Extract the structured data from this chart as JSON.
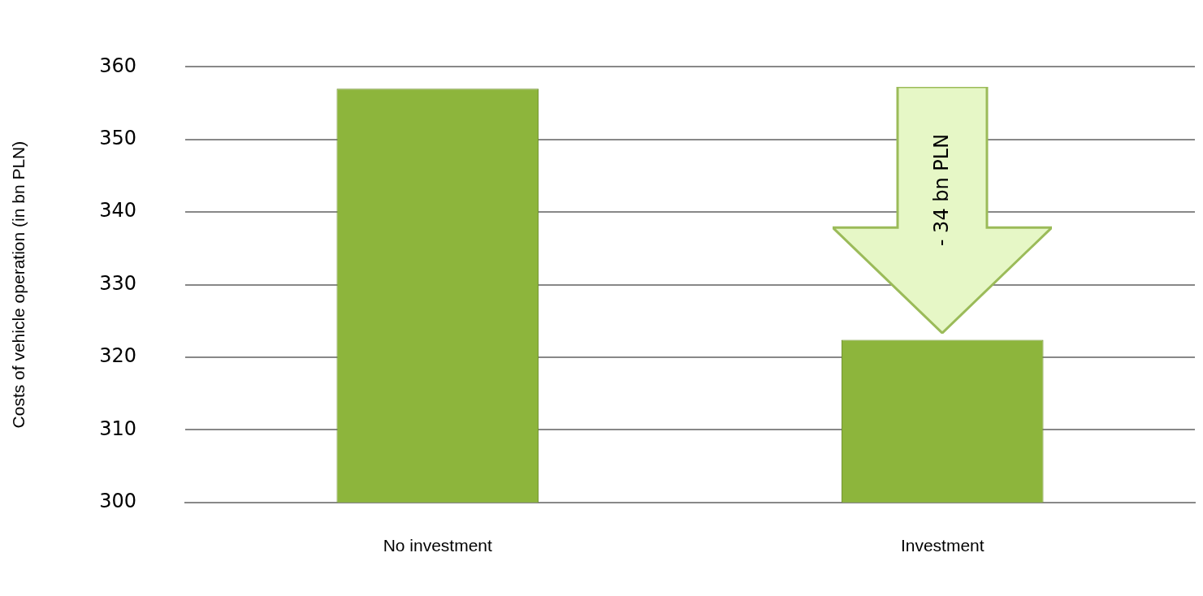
{
  "chart_data": {
    "type": "bar",
    "ylabel": "Costs of vehicle operation (in bn PLN)",
    "categories": [
      "No investment",
      "Investment"
    ],
    "values": [
      357,
      322.4
    ],
    "color": "#8db53c",
    "ylim": [
      300,
      360
    ],
    "yticks": [
      300,
      310,
      320,
      330,
      340,
      350,
      360
    ],
    "grid": "y",
    "legend": false,
    "annotations": [
      "- 34 bn PLN"
    ]
  }
}
